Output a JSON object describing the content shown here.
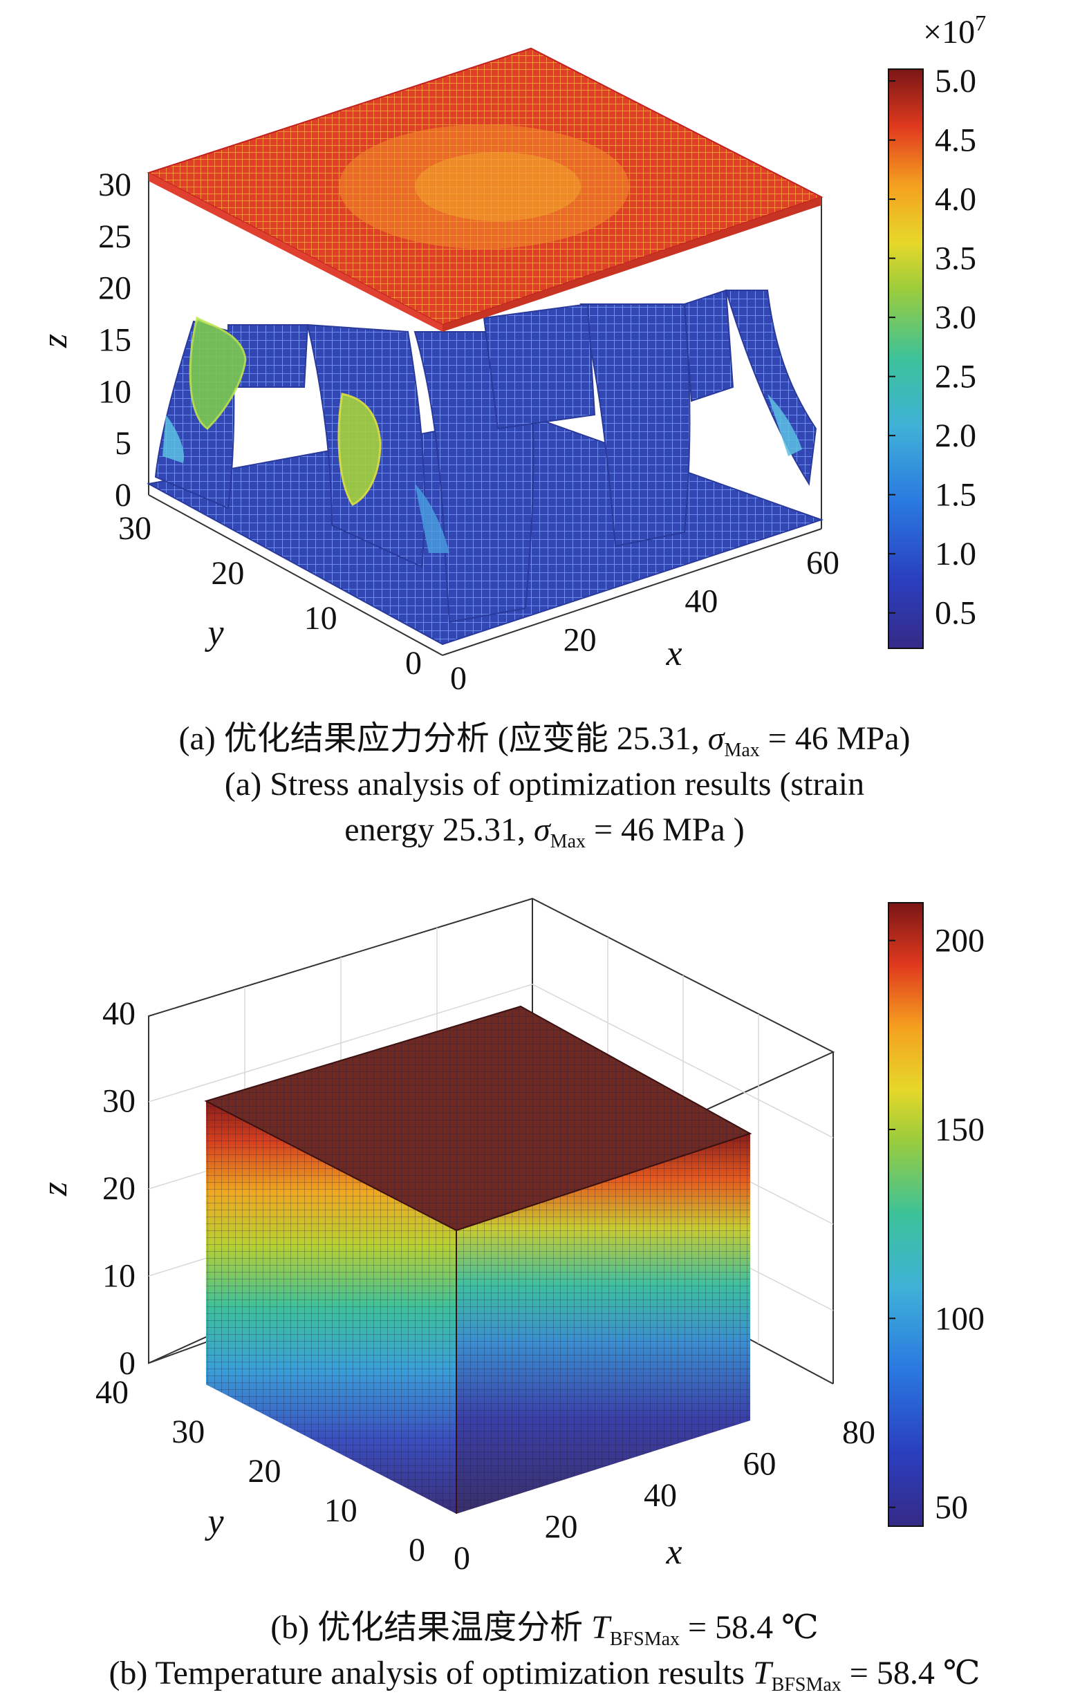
{
  "chart_data": [
    {
      "type": "surface3d",
      "panel": "a",
      "caption_cn_prefix": "(a) 优化结果应力分析 (应变能 25.31, ",
      "caption_cn_sigma": "σ",
      "caption_cn_sub": "Max",
      "caption_cn_suffix": " = 46 MPa)",
      "caption_en_line1": "(a) Stress analysis of optimization results (strain",
      "caption_en_prefix": "energy 25.31, ",
      "caption_en_sigma": "σ",
      "caption_en_sub": "Max",
      "caption_en_suffix": " = 46 MPa )",
      "xlabel": "x",
      "ylabel": "y",
      "zlabel": "z",
      "x_ticks": [
        "0",
        "20",
        "40",
        "60"
      ],
      "y_ticks": [
        "0",
        "10",
        "20",
        "30"
      ],
      "z_ticks": [
        "0",
        "5",
        "10",
        "15",
        "20",
        "25",
        "30"
      ],
      "xlim": [
        0,
        60
      ],
      "ylim": [
        0,
        30
      ],
      "zlim": [
        0,
        30
      ],
      "colorbar": {
        "exponent_label": "×10",
        "exponent_power": "7",
        "ticks": [
          "0.5",
          "1.0",
          "1.5",
          "2.0",
          "2.5",
          "3.0",
          "3.5",
          "4.0",
          "4.5",
          "5.0"
        ],
        "tick_values": [
          0.5,
          1.0,
          1.5,
          2.0,
          2.5,
          3.0,
          3.5,
          4.0,
          4.5,
          5.0
        ],
        "range": [
          0.2,
          5.1
        ],
        "colormap": "jet"
      },
      "description_values": {
        "top_plate_value": 4.0,
        "column_value": 0.8,
        "hot_spot_value": 2.7
      }
    },
    {
      "type": "voxel3d",
      "panel": "b",
      "caption_cn_prefix": "(b) 优化结果温度分析 ",
      "caption_cn_T": "T",
      "caption_cn_sub": "BFSMax",
      "caption_cn_suffix": " = 58.4 ℃",
      "caption_en_prefix": "(b) Temperature analysis of optimization results ",
      "caption_en_T": "T",
      "caption_en_sub": "BFSMax",
      "caption_en_suffix": " = 58.4 ℃",
      "xlabel": "x",
      "ylabel": "y",
      "zlabel": "z",
      "x_ticks": [
        "0",
        "20",
        "40",
        "60",
        "80"
      ],
      "y_ticks": [
        "0",
        "10",
        "20",
        "30",
        "40"
      ],
      "z_ticks": [
        "0",
        "10",
        "20",
        "30",
        "40"
      ],
      "xlim": [
        0,
        80
      ],
      "ylim": [
        0,
        40
      ],
      "zlim": [
        0,
        40
      ],
      "colorbar": {
        "ticks": [
          "50",
          "100",
          "150",
          "200"
        ],
        "tick_values": [
          50,
          100,
          150,
          200
        ],
        "range": [
          45,
          210
        ],
        "colormap": "jet"
      },
      "description_values": {
        "bottom_value": 50,
        "top_value": 205
      }
    }
  ]
}
